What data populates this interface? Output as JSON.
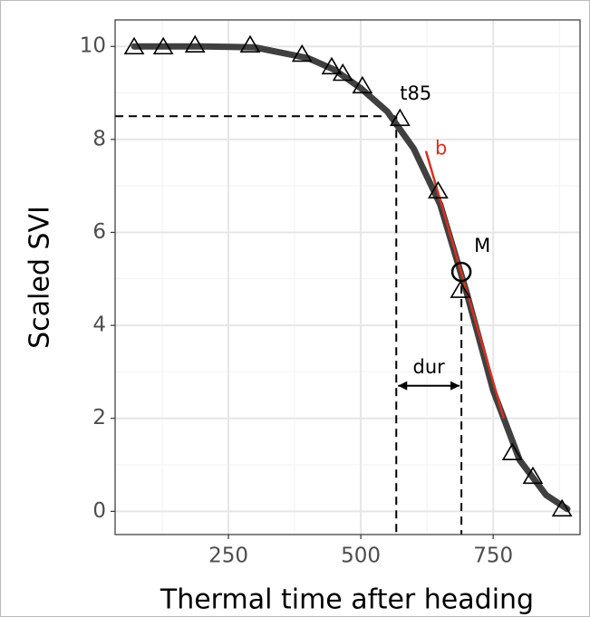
{
  "chart_data": {
    "type": "scatter",
    "x_label": "Thermal time after heading",
    "y_label": "Scaled SVI",
    "xlim": [
      36,
      914
    ],
    "ylim": [
      -0.5,
      10.57
    ],
    "xticks": [
      250,
      500,
      750
    ],
    "yticks": [
      0,
      2,
      4,
      6,
      8,
      10
    ],
    "grid": true,
    "observed": {
      "color": "#000000",
      "x": [
        72,
        127,
        187,
        291,
        389,
        445,
        466,
        503,
        574,
        646,
        688,
        786,
        825,
        880
      ],
      "values": [
        10.0,
        10.0,
        10.04,
        10.04,
        9.84,
        9.57,
        9.43,
        9.16,
        8.46,
        6.9,
        4.76,
        1.27,
        0.76,
        0.06
      ]
    },
    "fit": {
      "color": "#404040",
      "x": [
        72,
        200,
        300,
        400,
        450,
        500,
        550,
        600,
        650,
        700,
        750,
        800,
        850,
        890
      ],
      "values": [
        10.0,
        10.0,
        9.98,
        9.75,
        9.5,
        9.1,
        8.6,
        7.8,
        6.6,
        4.7,
        2.6,
        1.1,
        0.35,
        0.05
      ]
    },
    "tangent": {
      "label": "b",
      "color": "#d7301f",
      "x": [
        623,
        770
      ],
      "values": [
        7.75,
        2.0
      ]
    },
    "t85": {
      "label": "t85",
      "x": 567,
      "y": 8.5
    },
    "M": {
      "label": "M",
      "x": 690,
      "y": 5.15
    },
    "dur": {
      "label": "dur",
      "y": 2.7
    }
  }
}
